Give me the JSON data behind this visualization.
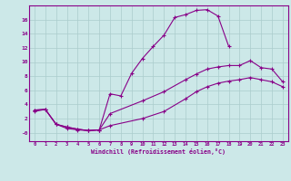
{
  "xlabel": "Windchill (Refroidissement éolien,°C)",
  "bg_color": "#cce8e8",
  "line_color": "#880088",
  "grid_color": "#aacccc",
  "xlim": [
    -0.5,
    23.5
  ],
  "ylim": [
    -1.2,
    18.0
  ],
  "xticks": [
    0,
    1,
    2,
    3,
    4,
    5,
    6,
    7,
    8,
    9,
    10,
    11,
    12,
    13,
    14,
    15,
    16,
    17,
    18,
    19,
    20,
    21,
    22,
    23
  ],
  "yticks": [
    0,
    2,
    4,
    6,
    8,
    10,
    12,
    14,
    16
  ],
  "ytick_labels": [
    "-0",
    "2",
    "4",
    "6",
    "8",
    "10",
    "12",
    "14",
    "16"
  ],
  "curve1_x": [
    0,
    1,
    2,
    3,
    4,
    5,
    6,
    7,
    8,
    9,
    10,
    11,
    12,
    13,
    14,
    15,
    16,
    17,
    18
  ],
  "curve1_y": [
    3.0,
    3.3,
    1.2,
    0.6,
    0.4,
    0.3,
    0.4,
    5.5,
    5.2,
    8.4,
    10.5,
    12.2,
    13.8,
    16.3,
    16.7,
    17.3,
    17.4,
    16.5,
    12.2
  ],
  "curve2_x": [
    0,
    1,
    2,
    3,
    4,
    5,
    6,
    7,
    10,
    12,
    14,
    15,
    16,
    17,
    18,
    19,
    20,
    21,
    22,
    23
  ],
  "curve2_y": [
    3.2,
    3.3,
    1.2,
    0.8,
    0.5,
    0.3,
    0.4,
    2.7,
    4.5,
    5.8,
    7.5,
    8.3,
    9.0,
    9.3,
    9.5,
    9.5,
    10.2,
    9.2,
    9.0,
    7.2
  ],
  "curve3_x": [
    0,
    1,
    2,
    3,
    4,
    5,
    6,
    7,
    10,
    12,
    14,
    15,
    16,
    17,
    18,
    19,
    20,
    21,
    22,
    23
  ],
  "curve3_y": [
    3.2,
    3.3,
    1.2,
    0.8,
    0.5,
    0.3,
    0.4,
    1.0,
    2.0,
    3.0,
    4.8,
    5.8,
    6.5,
    7.0,
    7.3,
    7.5,
    7.8,
    7.5,
    7.2,
    6.5
  ]
}
